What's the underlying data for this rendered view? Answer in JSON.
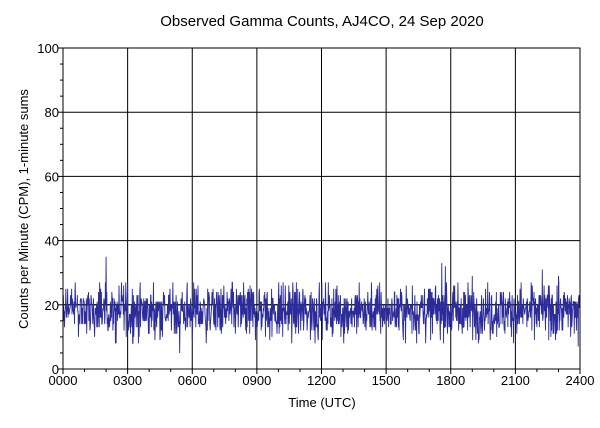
{
  "chart_data": {
    "type": "line",
    "title": "Observed Gamma Counts, AJ4CO, 24 Sep 2020",
    "xlabel": "Time (UTC)",
    "ylabel": "Counts per Minute (CPM), 1-minute sums",
    "xlim": [
      0,
      1440
    ],
    "ylim": [
      0,
      100
    ],
    "x_ticks": [
      {
        "label": "0000",
        "minutes": 0
      },
      {
        "label": "0300",
        "minutes": 180
      },
      {
        "label": "0600",
        "minutes": 360
      },
      {
        "label": "0900",
        "minutes": 540
      },
      {
        "label": "1200",
        "minutes": 720
      },
      {
        "label": "1500",
        "minutes": 900
      },
      {
        "label": "1800",
        "minutes": 1080
      },
      {
        "label": "2100",
        "minutes": 1260
      },
      {
        "label": "2400",
        "minutes": 1440
      }
    ],
    "y_ticks": [
      0,
      20,
      40,
      60,
      80,
      100
    ],
    "grid": true,
    "reference_line": {
      "y": 20
    },
    "series": [
      {
        "color": "#2b2b9a",
        "summary": {
          "points": 1440,
          "mean": 18,
          "min": 5,
          "max": 35
        },
        "peaks": [
          {
            "minutes": 120,
            "value": 35
          },
          {
            "minutes": 1055,
            "value": 33
          },
          {
            "minutes": 1065,
            "value": 32
          },
          {
            "minutes": 1140,
            "value": 29
          },
          {
            "minutes": 1335,
            "value": 31
          },
          {
            "minutes": 1380,
            "value": 29
          }
        ],
        "dips": [
          {
            "minutes": 325,
            "value": 5
          },
          {
            "minutes": 1435,
            "value": 7
          }
        ]
      }
    ]
  }
}
